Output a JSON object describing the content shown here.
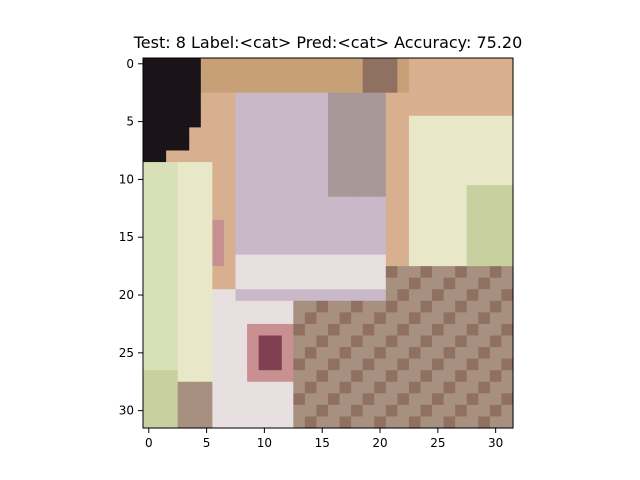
{
  "figure": {
    "title": "Test: 8  Label:<cat>  Pred:<cat>  Accuracy: 75.20"
  },
  "image": {
    "description": "",
    "pixel_grid_size": [
      32,
      32
    ],
    "axis": {
      "xlim": [
        -0.5,
        31.5
      ],
      "ylim": [
        31.5,
        -0.5
      ],
      "x_ticks": [
        0,
        5,
        10,
        15,
        20,
        25,
        30
      ],
      "y_ticks": [
        0,
        5,
        10,
        15,
        20,
        25,
        30
      ]
    },
    "palette": {
      "dark": "#1a1418",
      "tan": "#c8a078",
      "peach": "#d8b090",
      "lavender": "#c8b8c8",
      "gray": "#a89898",
      "cream": "#e8e8c8",
      "lime": "#c8d0a0",
      "lightgreen": "#d8e0b8",
      "taupe": "#a89080",
      "pink": "#c89090",
      "maroon": "#804050",
      "white": "#e8e0e0",
      "brown": "#907060"
    }
  }
}
